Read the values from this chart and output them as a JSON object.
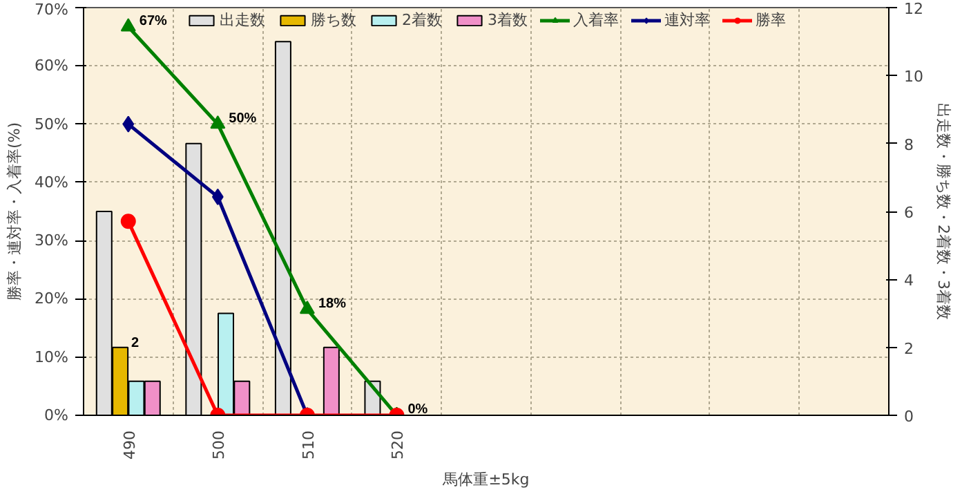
{
  "chart_data": {
    "type": "bar",
    "xlabel": "馬体重±5kg",
    "ylabel": "勝率・連対率・入着率(%)",
    "y2label": "出走数・勝ち数・2着数・3着数",
    "categories": [
      "490",
      "500",
      "510",
      "520",
      null,
      null,
      null,
      null,
      null
    ],
    "ylim": [
      0,
      70
    ],
    "yticks": [
      {
        "value": 0,
        "label": "0%"
      },
      {
        "value": 10,
        "label": "10%"
      },
      {
        "value": 20,
        "label": "20%"
      },
      {
        "value": 30,
        "label": "30%"
      },
      {
        "value": 40,
        "label": "40%"
      },
      {
        "value": 50,
        "label": "50%"
      },
      {
        "value": 60,
        "label": "60%"
      },
      {
        "value": 70,
        "label": "70%"
      }
    ],
    "y2lim": [
      0,
      12
    ],
    "y2ticks": [
      0,
      2,
      4,
      6,
      8,
      10,
      12
    ],
    "grid": true,
    "legend": "top",
    "series": [
      {
        "name": "出走数",
        "axis": "y2",
        "color": "#e0e0e0",
        "values": [
          6,
          8,
          11,
          1,
          null,
          null,
          null,
          null,
          null
        ]
      },
      {
        "name": "勝ち数",
        "axis": "y2",
        "color": "#e6b800",
        "values": [
          2,
          0,
          0,
          0,
          null,
          null,
          null,
          null,
          null
        ],
        "value_labels": [
          "2",
          null,
          null,
          null,
          null,
          null,
          null,
          null,
          null
        ]
      },
      {
        "name": "2着数",
        "axis": "y2",
        "color": "#b8f0f0",
        "values": [
          1,
          3,
          0,
          0,
          null,
          null,
          null,
          null,
          null
        ]
      },
      {
        "name": "3着数",
        "axis": "y2",
        "color": "#f090c8",
        "values": [
          1,
          1,
          2,
          0,
          null,
          null,
          null,
          null,
          null
        ]
      },
      {
        "name": "入着率",
        "type": "line",
        "color": "#008000",
        "marker": "triangle",
        "values": [
          66.7,
          50,
          18.2,
          0,
          null,
          null,
          null,
          null,
          null
        ],
        "value_labels": [
          "67%",
          "50%",
          "18%",
          "0%",
          null,
          null,
          null,
          null,
          null
        ]
      },
      {
        "name": "連対率",
        "type": "line",
        "color": "#000080",
        "marker": "diamond",
        "values": [
          50,
          37.5,
          0,
          null,
          null,
          null,
          null,
          null,
          null
        ]
      },
      {
        "name": "勝率",
        "type": "line",
        "color": "#ff0000",
        "marker": "circle",
        "values": [
          33.3,
          0,
          0,
          0,
          null,
          null,
          null,
          null,
          null
        ]
      }
    ]
  }
}
